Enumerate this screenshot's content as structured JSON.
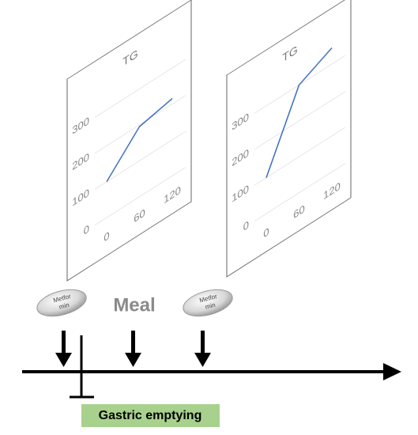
{
  "panels": [
    {
      "title": "TG",
      "x": [
        0,
        60,
        120
      ],
      "values": [
        100,
        195,
        215
      ],
      "xlim": [
        0,
        120
      ],
      "ylim": [
        0,
        350
      ],
      "xticks": [
        0,
        60,
        120
      ],
      "yticks": [
        0,
        100,
        200,
        300
      ],
      "color": "#4472c4"
    },
    {
      "title": "TG",
      "x": [
        0,
        60,
        120
      ],
      "values": [
        100,
        300,
        345
      ],
      "xlim": [
        0,
        120
      ],
      "ylim": [
        0,
        350
      ],
      "xticks": [
        0,
        60,
        120
      ],
      "yticks": [
        0,
        100,
        200,
        300
      ],
      "color": "#4472c4"
    }
  ],
  "pills": [
    {
      "lines": [
        "Metfor",
        "min"
      ]
    },
    {
      "lines": [
        "Metfor",
        "min"
      ]
    }
  ],
  "meal": "Meal",
  "gastric": "Gastric emptying"
}
